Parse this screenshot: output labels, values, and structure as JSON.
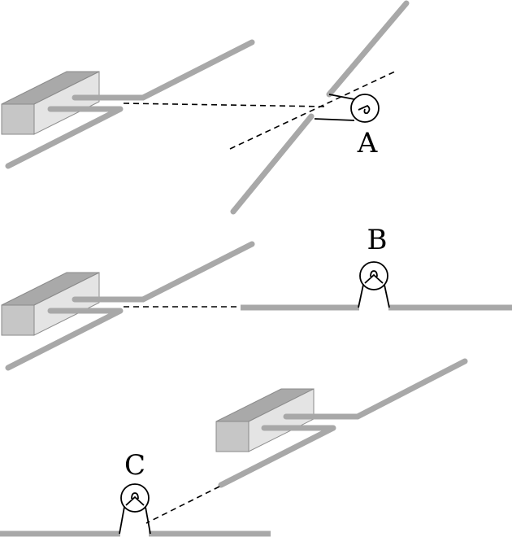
{
  "labels": {
    "a": "A",
    "b": "B",
    "c": "C"
  },
  "colors": {
    "rail": "#a8a8a8",
    "box_top": "#a9a9a9",
    "box_front": "#c6c6c6",
    "box_side": "#e4e4e4",
    "line": "#000000"
  }
}
